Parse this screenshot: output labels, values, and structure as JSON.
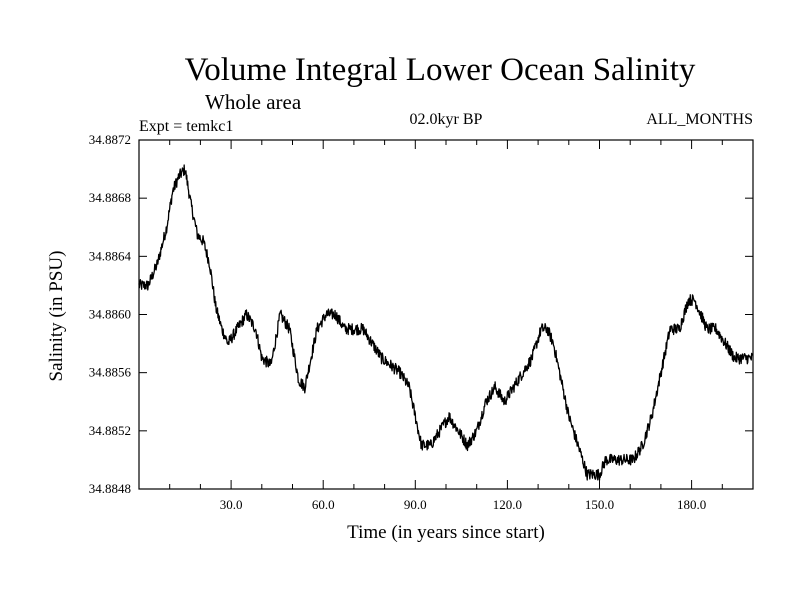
{
  "chart_data": {
    "type": "line",
    "title": "Volume Integral Lower Ocean Salinity",
    "subtitle": "Whole area",
    "experiment_label": "Expt = temkc1",
    "period_label": "02.0kyr BP",
    "months_label": "ALL_MONTHS",
    "xlabel": "Time (in years since start)",
    "ylabel": "Salinity (in PSU)",
    "xlim": [
      0,
      200
    ],
    "ylim": [
      34.8848,
      34.8872
    ],
    "x_ticks": [
      30,
      60,
      90,
      120,
      150,
      180
    ],
    "x_tick_labels": [
      "30.0",
      "60.0",
      "90.0",
      "120.0",
      "150.0",
      "180.0"
    ],
    "y_ticks": [
      34.8848,
      34.8852,
      34.8856,
      34.886,
      34.8864,
      34.8868,
      34.8872
    ],
    "y_tick_labels": [
      "34.8848",
      "34.8852",
      "34.8856",
      "34.8860",
      "34.8864",
      "34.8868",
      "34.8872"
    ],
    "grid": false,
    "line_color": "#000000",
    "series": [
      {
        "name": "Salinity",
        "x": [
          0,
          3,
          6,
          9,
          11,
          13,
          15,
          17,
          19,
          21,
          23,
          25,
          27,
          29,
          32,
          35,
          38,
          40,
          43,
          46,
          49,
          52,
          54,
          56,
          58,
          61,
          64,
          67,
          70,
          73,
          76,
          79,
          82,
          85,
          88,
          90,
          92,
          95,
          98,
          101,
          104,
          107,
          110,
          113,
          116,
          119,
          122,
          125,
          128,
          131,
          133,
          135,
          137,
          140,
          143,
          146,
          148,
          150,
          152,
          155,
          158,
          161,
          164,
          167,
          170,
          173,
          176,
          179,
          181,
          183,
          185,
          188,
          191,
          194,
          197,
          200
        ],
        "values": [
          34.8862,
          34.8862,
          34.88635,
          34.8866,
          34.88685,
          34.88695,
          34.887,
          34.88675,
          34.88655,
          34.8865,
          34.88635,
          34.88605,
          34.8859,
          34.8858,
          34.8859,
          34.886,
          34.8859,
          34.8857,
          34.88565,
          34.886,
          34.8859,
          34.88555,
          34.8855,
          34.8857,
          34.8859,
          34.886,
          34.886,
          34.8859,
          34.8859,
          34.8859,
          34.8858,
          34.8857,
          34.88565,
          34.8856,
          34.8855,
          34.8853,
          34.8851,
          34.8851,
          34.8852,
          34.8853,
          34.8852,
          34.8851,
          34.8852,
          34.8854,
          34.8855,
          34.8854,
          34.8855,
          34.8856,
          34.8857,
          34.8859,
          34.8859,
          34.8858,
          34.8856,
          34.8853,
          34.8851,
          34.8849,
          34.8849,
          34.8849,
          34.885,
          34.885,
          34.885,
          34.885,
          34.8851,
          34.8853,
          34.8856,
          34.8859,
          34.8859,
          34.8861,
          34.8861,
          34.886,
          34.8859,
          34.8859,
          34.8858,
          34.8857,
          34.8857,
          34.8857
        ]
      }
    ]
  }
}
